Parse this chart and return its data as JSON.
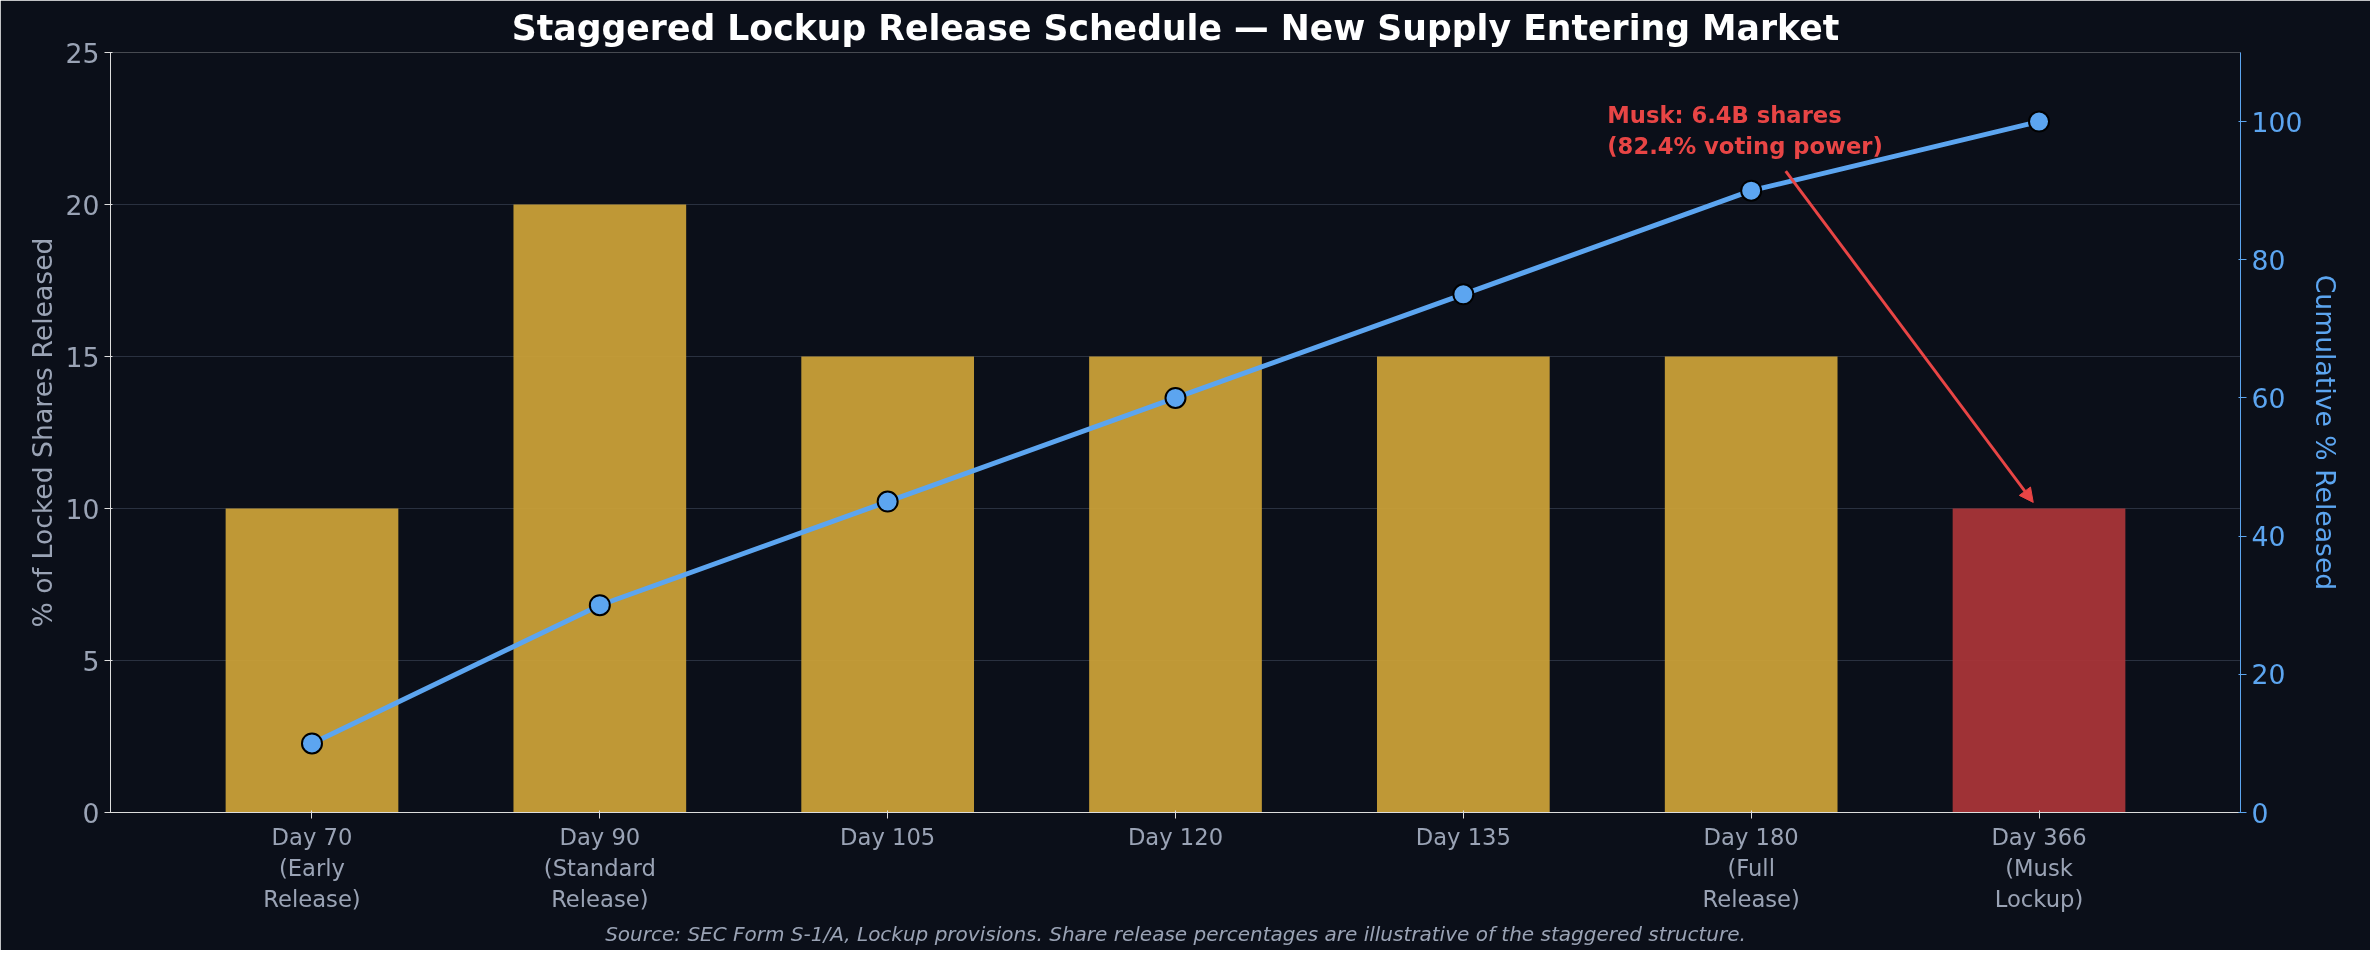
{
  "chart_data": {
    "type": "bar",
    "title": "Staggered Lockup Release Schedule — New Supply Entering Market",
    "ylabel": "% of Locked Shares Released",
    "y2label": "Cumulative % Released",
    "categories": [
      "Day 70\n(Early\nRelease)",
      "Day 90\n(Standard\nRelease)",
      "Day 105",
      "Day 120",
      "Day 135",
      "Day 180\n(Full\nRelease)",
      "Day 366\n(Musk\nLockup)"
    ],
    "series": [
      {
        "colors": [
          "#c9a038",
          "#c9a038",
          "#c9a038",
          "#c9a038",
          "#c9a038",
          "#c9a038",
          "#a83538"
        ],
        "values": [
          10,
          20,
          15,
          15,
          15,
          15,
          10
        ]
      },
      {
        "type": "line",
        "axis": "y2",
        "color": "#5ca5f0",
        "marker": "circle",
        "values": [
          10,
          30,
          45,
          60,
          75,
          90,
          100
        ]
      }
    ],
    "ylim": [
      0,
      25
    ],
    "yticks": [
      0,
      5,
      10,
      15,
      20,
      25
    ],
    "y2lim": [
      0,
      110
    ],
    "y2ticks": [
      0,
      20,
      40,
      60,
      80,
      100
    ],
    "grid": "y",
    "annotations": [
      {
        "text": "Musk: 6.4B shares\n(82.4% voting power)",
        "x": "Day 366\n(Musk\nLockup)",
        "y": 10
      },
      "Source: SEC Form S-1/A, Lockup provisions. Share release percentages are illustrative of the staggered structure."
    ]
  }
}
